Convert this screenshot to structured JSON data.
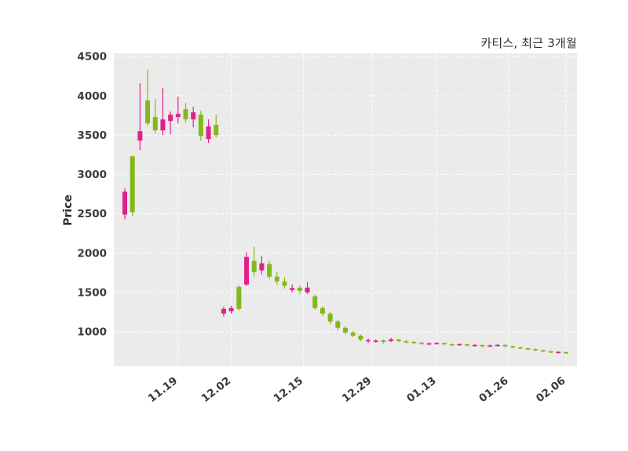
{
  "title": "카티스, 최근 3개월",
  "chart_data": {
    "type": "candlestick",
    "title": "카티스, 최근 3개월",
    "ylabel": "Price",
    "xlabel": "",
    "ylim": [
      560,
      4540
    ],
    "yticks": [
      1000,
      1500,
      2000,
      2500,
      3000,
      3500,
      4000,
      4500
    ],
    "xticks": [
      {
        "label": "11.19",
        "index": 7
      },
      {
        "label": "12.02",
        "index": 14
      },
      {
        "label": "12.15",
        "index": 23.5
      },
      {
        "label": "12.29",
        "index": 32.5
      },
      {
        "label": "01.13",
        "index": 41
      },
      {
        "label": "01.26",
        "index": 50.5
      },
      {
        "label": "02.06",
        "index": 58
      }
    ],
    "grid": true,
    "legend_position": "none",
    "colors": {
      "up": "#e0218a",
      "down": "#84b71d",
      "plot_bg": "#ebebeb",
      "grid": "#ffffff",
      "tick_text": "#3a3a3a"
    },
    "columns": [
      "date",
      "open",
      "high",
      "low",
      "close"
    ],
    "candles": [
      [
        "11.08",
        2490,
        2820,
        2430,
        2780
      ],
      [
        "11.11",
        3230,
        3240,
        2470,
        2520
      ],
      [
        "11.12",
        3430,
        4160,
        3310,
        3550
      ],
      [
        "11.13",
        3940,
        4330,
        3620,
        3650
      ],
      [
        "11.14",
        3730,
        3960,
        3520,
        3560
      ],
      [
        "11.15",
        3560,
        4100,
        3500,
        3700
      ],
      [
        "11.18",
        3680,
        3800,
        3510,
        3760
      ],
      [
        "11.19",
        3730,
        3990,
        3650,
        3770
      ],
      [
        "11.20",
        3830,
        3910,
        3660,
        3700
      ],
      [
        "11.21",
        3700,
        3860,
        3600,
        3790
      ],
      [
        "11.22",
        3760,
        3810,
        3430,
        3490
      ],
      [
        "11.25",
        3450,
        3700,
        3400,
        3610
      ],
      [
        "11.26",
        3630,
        3760,
        3470,
        3500
      ],
      [
        "11.29",
        1230,
        1320,
        1190,
        1290
      ],
      [
        "12.02",
        1260,
        1330,
        1230,
        1300
      ],
      [
        "12.03",
        1570,
        1590,
        1270,
        1290
      ],
      [
        "12.04",
        1600,
        2010,
        1580,
        1950
      ],
      [
        "12.05",
        1900,
        2080,
        1700,
        1760
      ],
      [
        "12.06",
        1780,
        1960,
        1730,
        1870
      ],
      [
        "12.09",
        1860,
        1900,
        1670,
        1700
      ],
      [
        "12.10",
        1700,
        1760,
        1600,
        1640
      ],
      [
        "12.11",
        1640,
        1690,
        1550,
        1585
      ],
      [
        "12.12",
        1530,
        1600,
        1500,
        1555
      ],
      [
        "12.13",
        1560,
        1585,
        1480,
        1520
      ],
      [
        "12.16",
        1500,
        1630,
        1480,
        1560
      ],
      [
        "12.17",
        1450,
        1470,
        1280,
        1300
      ],
      [
        "12.18",
        1300,
        1325,
        1195,
        1230
      ],
      [
        "12.19",
        1230,
        1250,
        1095,
        1130
      ],
      [
        "12.20",
        1130,
        1150,
        1015,
        1050
      ],
      [
        "12.23",
        1050,
        1075,
        965,
        990
      ],
      [
        "12.24",
        990,
        1010,
        930,
        950
      ],
      [
        "12.26",
        950,
        965,
        880,
        900
      ],
      [
        "12.27",
        880,
        915,
        858,
        893
      ],
      [
        "12.30",
        876,
        903,
        860,
        886
      ],
      [
        "01.02",
        890,
        902,
        850,
        868
      ],
      [
        "01.03",
        880,
        922,
        868,
        902
      ],
      [
        "01.06",
        900,
        912,
        868,
        880
      ],
      [
        "01.07",
        880,
        893,
        853,
        868
      ],
      [
        "01.08",
        870,
        882,
        843,
        856
      ],
      [
        "01.09",
        860,
        872,
        833,
        845
      ],
      [
        "01.10",
        840,
        862,
        830,
        852
      ],
      [
        "01.13",
        846,
        866,
        836,
        856
      ],
      [
        "01.14",
        856,
        862,
        828,
        840
      ],
      [
        "01.15",
        840,
        852,
        818,
        830
      ],
      [
        "01.16",
        830,
        851,
        820,
        842
      ],
      [
        "01.17",
        841,
        847,
        813,
        824
      ],
      [
        "01.20",
        820,
        842,
        810,
        832
      ],
      [
        "01.21",
        831,
        836,
        803,
        815
      ],
      [
        "01.22",
        815,
        836,
        805,
        826
      ],
      [
        "01.23",
        820,
        846,
        810,
        832
      ],
      [
        "01.24",
        832,
        837,
        798,
        814
      ],
      [
        "01.28",
        815,
        821,
        788,
        800
      ],
      [
        "01.29",
        800,
        811,
        778,
        790
      ],
      [
        "01.30",
        790,
        796,
        763,
        774
      ],
      [
        "01.31",
        778,
        786,
        753,
        764
      ],
      [
        "02.03",
        764,
        771,
        738,
        750
      ],
      [
        "02.04",
        750,
        761,
        728,
        740
      ],
      [
        "02.05",
        735,
        751,
        724,
        744
      ],
      [
        "02.06",
        740,
        746,
        716,
        728
      ]
    ]
  }
}
